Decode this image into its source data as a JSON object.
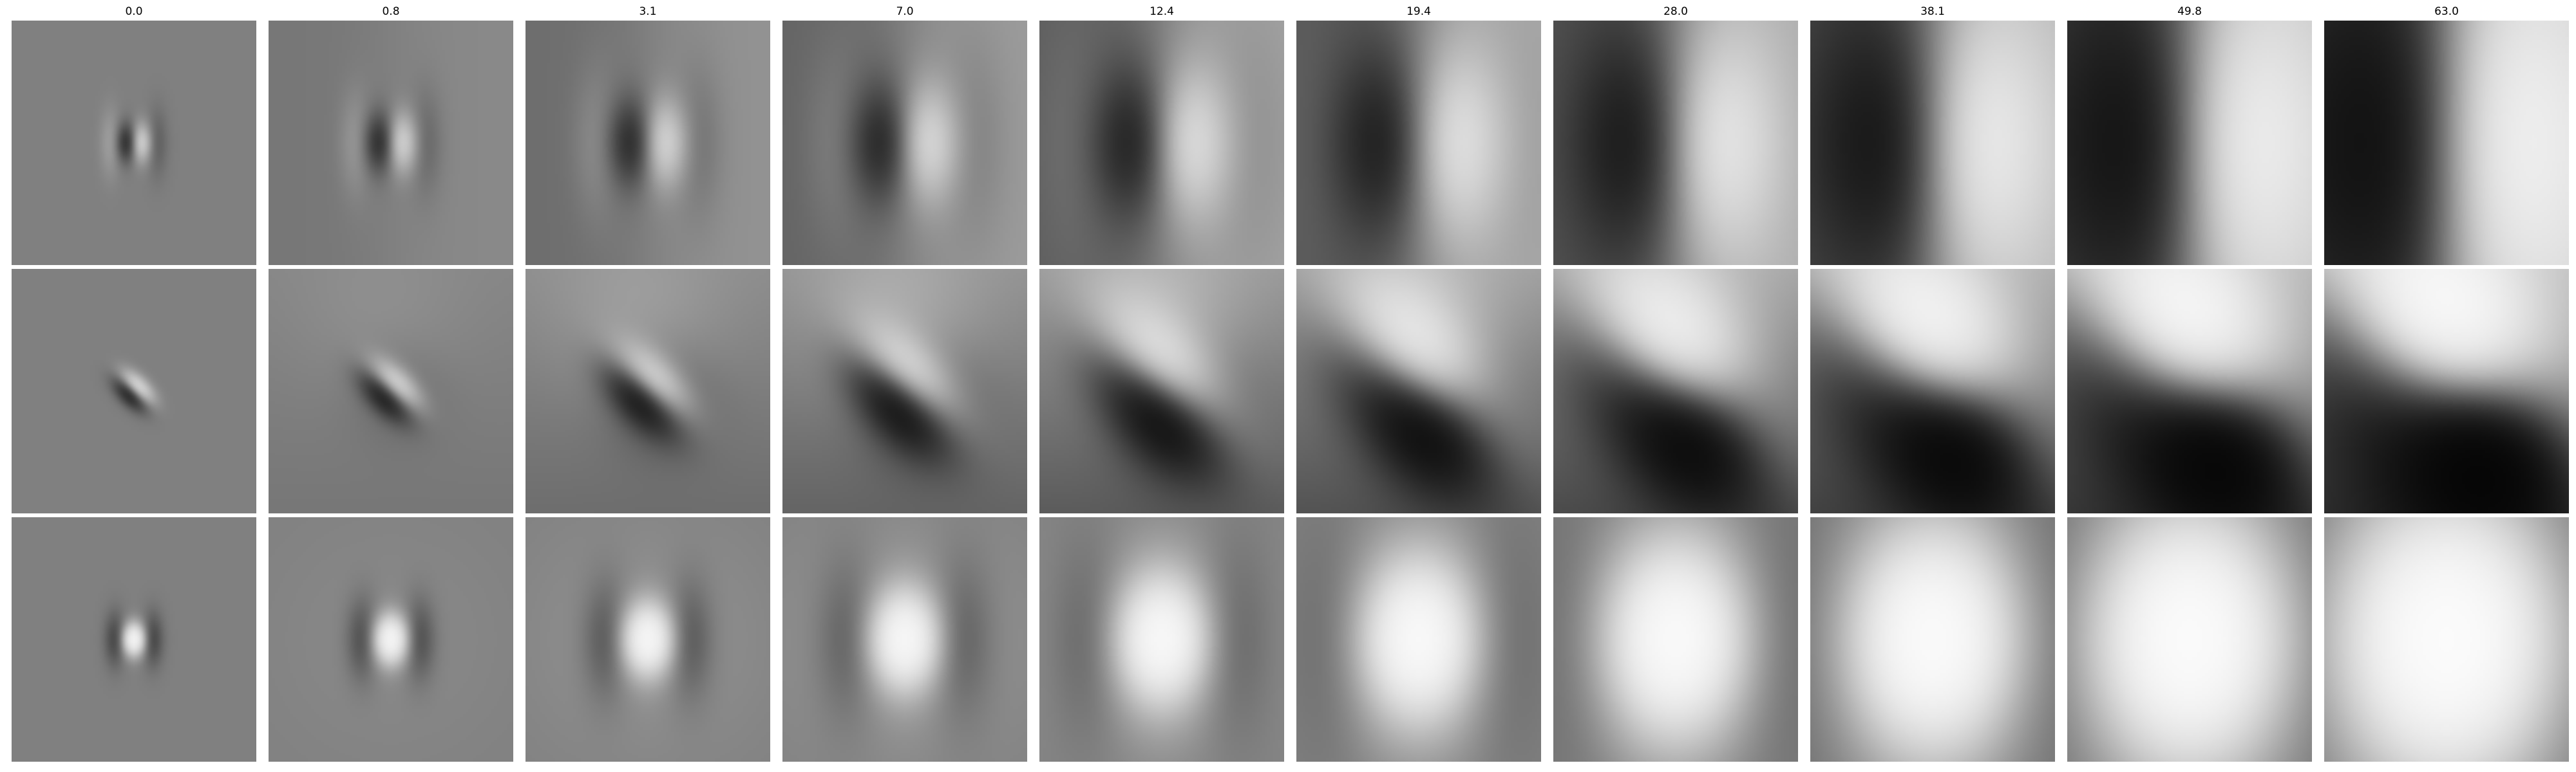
{
  "columns": [
    "0.0",
    "0.8",
    "3.1",
    "7.0",
    "12.4",
    "19.4",
    "28.0",
    "38.1",
    "49.8",
    "63.0"
  ],
  "rows": [
    {
      "orientation": "vertical",
      "type": "odd"
    },
    {
      "orientation": "diagonal",
      "type": "odd"
    },
    {
      "orientation": "vertical",
      "type": "even"
    }
  ],
  "colors": {
    "background": "#ffffff",
    "mid_gray": "#808080",
    "dark": "#000000",
    "light": "#ffffff"
  }
}
